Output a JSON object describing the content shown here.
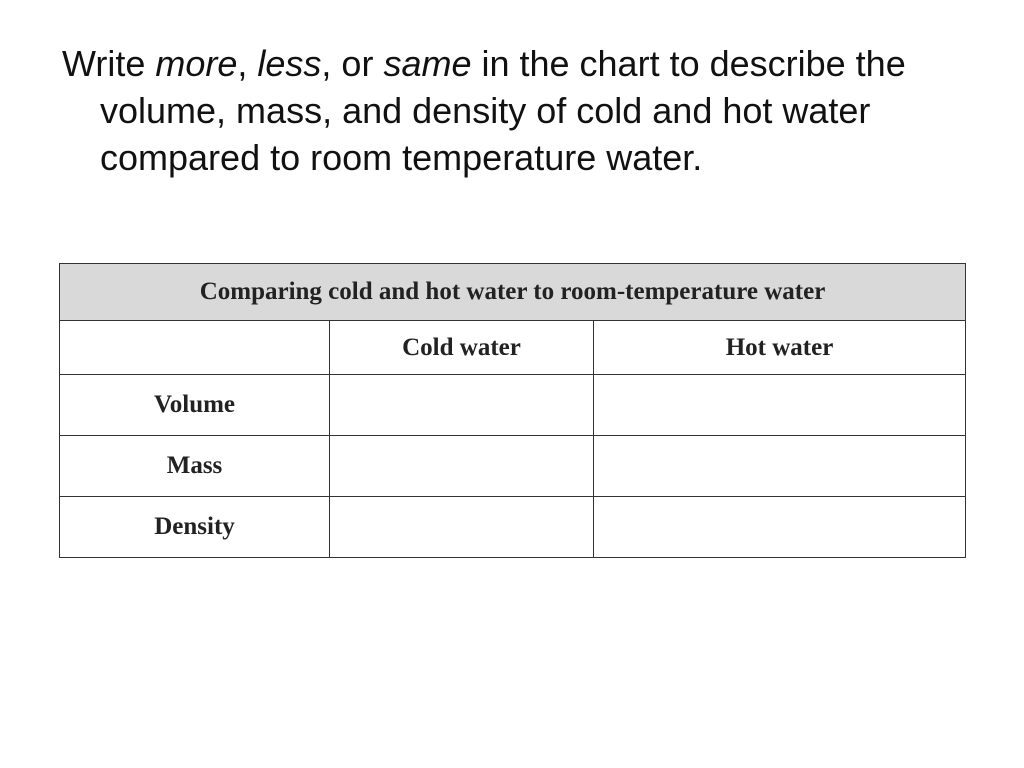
{
  "instructions": {
    "part1": "Write ",
    "word_more": "more",
    "part2": ", ",
    "word_less": "less",
    "part3": ", or ",
    "word_same": "same",
    "part4": " in the chart to describe the volume, mass, and density of cold and hot water compared to room temperature water."
  },
  "table": {
    "title": "Comparing cold and hot water to room-temperature water",
    "corner": "",
    "columns": [
      "Cold water",
      "Hot water"
    ],
    "rows": [
      {
        "label": "Volume",
        "cold": "",
        "hot": ""
      },
      {
        "label": "Mass",
        "cold": "",
        "hot": ""
      },
      {
        "label": "Density",
        "cold": "",
        "hot": ""
      }
    ]
  }
}
